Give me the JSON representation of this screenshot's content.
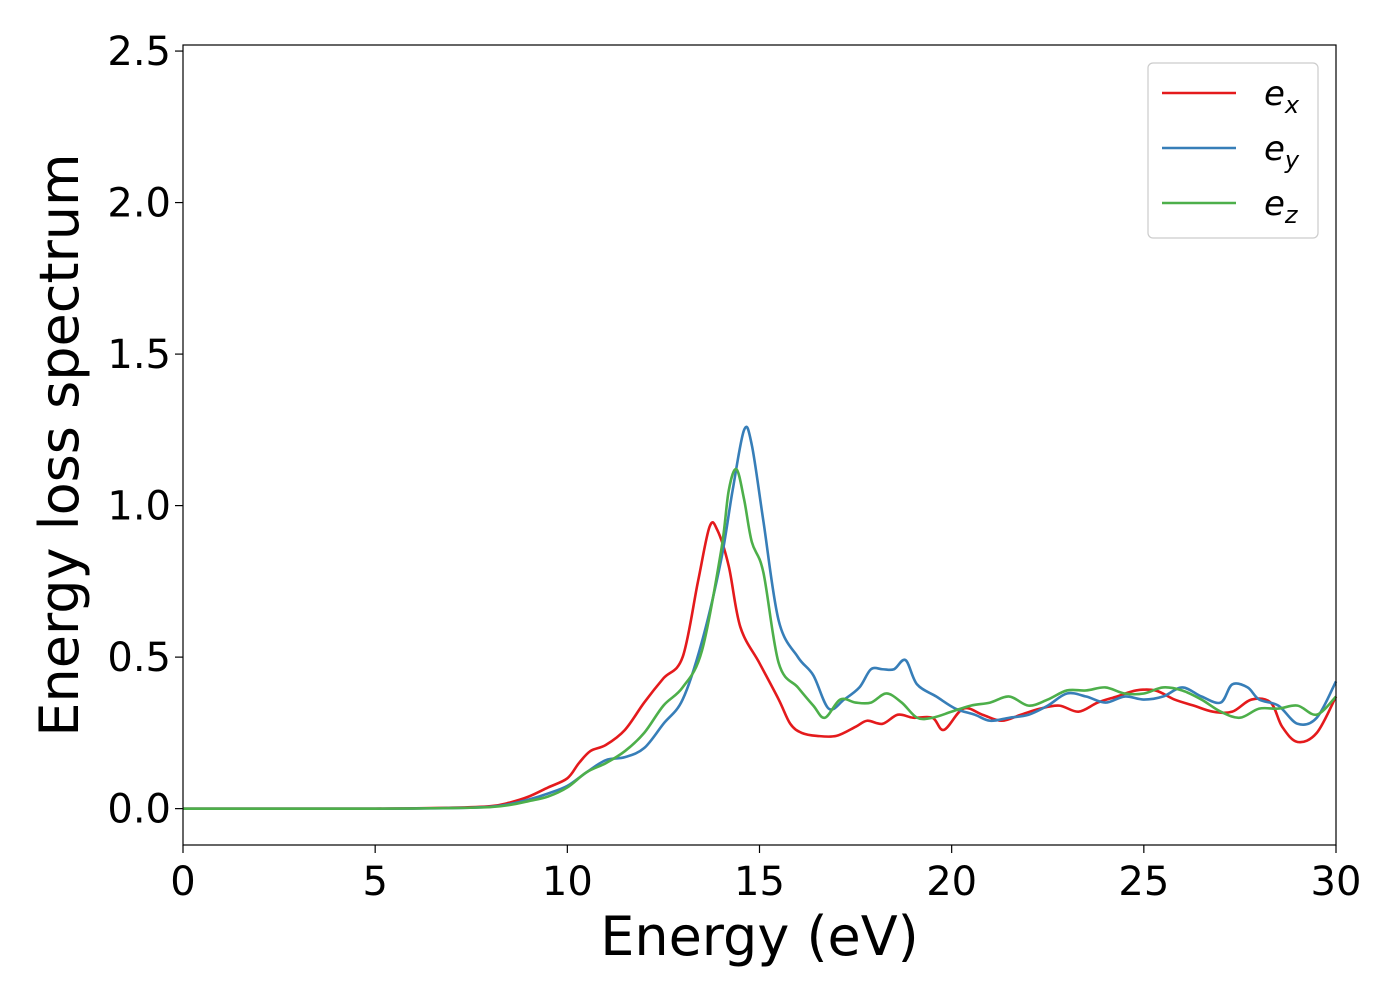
{
  "chart_data": {
    "type": "line",
    "xlabel": "Energy (eV)",
    "ylabel": "Energy loss spectrum",
    "xlim": [
      0,
      30
    ],
    "ylim": [
      -0.12,
      2.52
    ],
    "xticks": [
      "0",
      "5",
      "10",
      "15",
      "20",
      "25",
      "30"
    ],
    "yticks": [
      "0.0",
      "0.5",
      "1.0",
      "1.5",
      "2.0",
      "2.5"
    ],
    "grid": false,
    "legend_position": "top-right",
    "series": [
      {
        "name": "e_x",
        "legend_base": "e",
        "legend_sub": "x",
        "color": "#e41a1c",
        "x": [
          0,
          5,
          7,
          8,
          8.5,
          9,
          9.5,
          10,
          10.3,
          10.6,
          11,
          11.5,
          12,
          12.5,
          13,
          13.4,
          13.7,
          13.9,
          14.2,
          14.5,
          15,
          15.5,
          15.8,
          16.1,
          16.5,
          17,
          17.5,
          17.8,
          18.2,
          18.6,
          19,
          19.5,
          19.8,
          20.3,
          20.8,
          21.3,
          21.8,
          22.3,
          22.8,
          23.3,
          23.8,
          24.3,
          24.8,
          25.3,
          25.8,
          26.3,
          26.8,
          27.3,
          27.8,
          28.3,
          28.6,
          29,
          29.5,
          30
        ],
        "y": [
          0,
          0,
          0.003,
          0.008,
          0.02,
          0.04,
          0.07,
          0.1,
          0.15,
          0.19,
          0.21,
          0.26,
          0.35,
          0.43,
          0.5,
          0.75,
          0.93,
          0.92,
          0.8,
          0.6,
          0.48,
          0.36,
          0.28,
          0.25,
          0.24,
          0.24,
          0.27,
          0.29,
          0.28,
          0.31,
          0.3,
          0.3,
          0.26,
          0.33,
          0.31,
          0.29,
          0.31,
          0.33,
          0.34,
          0.32,
          0.35,
          0.37,
          0.39,
          0.39,
          0.36,
          0.34,
          0.32,
          0.32,
          0.36,
          0.35,
          0.27,
          0.22,
          0.25,
          0.37
        ]
      },
      {
        "name": "e_y",
        "legend_base": "e",
        "legend_sub": "y",
        "color": "#377eb8",
        "x": [
          0,
          5,
          7,
          8,
          8.5,
          9,
          9.5,
          10,
          10.5,
          11,
          11.5,
          12,
          12.5,
          13,
          13.5,
          14,
          14.3,
          14.6,
          14.8,
          15.1,
          15.5,
          16,
          16.4,
          16.8,
          17.2,
          17.6,
          17.9,
          18.2,
          18.5,
          18.8,
          19.1,
          19.6,
          20.1,
          20.6,
          21,
          21.5,
          22,
          22.5,
          23,
          23.5,
          24,
          24.5,
          25,
          25.5,
          26,
          26.5,
          27,
          27.3,
          27.7,
          28,
          28.5,
          29,
          29.5,
          30
        ],
        "y": [
          0,
          0,
          0.002,
          0.006,
          0.015,
          0.03,
          0.05,
          0.075,
          0.12,
          0.16,
          0.17,
          0.2,
          0.28,
          0.36,
          0.55,
          0.82,
          1.05,
          1.25,
          1.2,
          0.95,
          0.62,
          0.5,
          0.44,
          0.33,
          0.36,
          0.4,
          0.46,
          0.46,
          0.46,
          0.49,
          0.41,
          0.37,
          0.33,
          0.31,
          0.29,
          0.3,
          0.31,
          0.34,
          0.38,
          0.37,
          0.35,
          0.37,
          0.36,
          0.37,
          0.4,
          0.37,
          0.35,
          0.41,
          0.4,
          0.36,
          0.34,
          0.28,
          0.3,
          0.42
        ]
      },
      {
        "name": "e_z",
        "legend_base": "e",
        "legend_sub": "z",
        "color": "#4daf4a",
        "x": [
          0,
          5,
          7,
          8,
          8.5,
          9,
          9.5,
          10,
          10.5,
          11,
          11.5,
          12,
          12.5,
          13,
          13.5,
          14,
          14.2,
          14.4,
          14.6,
          14.8,
          15.1,
          15.5,
          16,
          16.4,
          16.7,
          17.1,
          17.5,
          17.9,
          18.3,
          18.7,
          19.1,
          19.5,
          20,
          20.5,
          21,
          21.5,
          22,
          22.5,
          23,
          23.5,
          24,
          24.5,
          25,
          25.5,
          26,
          26.5,
          27,
          27.5,
          28,
          28.5,
          29,
          29.5,
          30
        ],
        "y": [
          0,
          0,
          0.002,
          0.005,
          0.012,
          0.025,
          0.04,
          0.07,
          0.12,
          0.15,
          0.19,
          0.25,
          0.34,
          0.4,
          0.52,
          0.85,
          1.05,
          1.12,
          1.02,
          0.88,
          0.78,
          0.48,
          0.4,
          0.34,
          0.3,
          0.36,
          0.35,
          0.35,
          0.38,
          0.35,
          0.3,
          0.3,
          0.32,
          0.34,
          0.35,
          0.37,
          0.34,
          0.36,
          0.39,
          0.39,
          0.4,
          0.38,
          0.38,
          0.4,
          0.39,
          0.36,
          0.32,
          0.3,
          0.33,
          0.33,
          0.34,
          0.31,
          0.37
        ]
      }
    ]
  }
}
